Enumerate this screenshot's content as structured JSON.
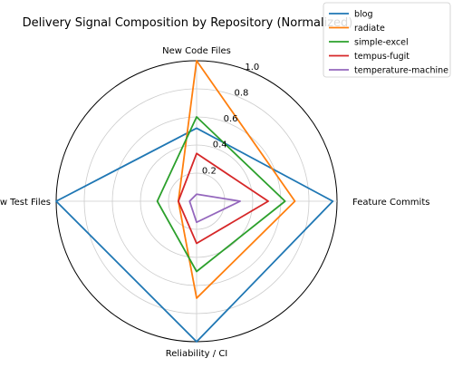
{
  "chart_data": {
    "type": "radar",
    "title": "Delivery Signal Composition by Repository (Normalized)",
    "axes": [
      "Feature Commits",
      "New Code Files",
      "New Test Files",
      "Reliability / CI"
    ],
    "rlim": [
      0,
      1.0
    ],
    "rticks": [
      0.2,
      0.4,
      0.6,
      0.8,
      1.0
    ],
    "rtick_labels": [
      "0.2",
      "0.4",
      "0.6",
      "0.8",
      "1.0"
    ],
    "grid": true,
    "legend": "top-right",
    "series": [
      {
        "name": "blog",
        "color": "#1f77b4",
        "values": [
          0.97,
          0.52,
          1.0,
          1.0
        ]
      },
      {
        "name": "radiate",
        "color": "#ff7f0e",
        "values": [
          0.7,
          1.0,
          0.13,
          0.69
        ]
      },
      {
        "name": "simple-excel",
        "color": "#2ca02c",
        "values": [
          0.63,
          0.6,
          0.28,
          0.5
        ]
      },
      {
        "name": "tempus-fugit",
        "color": "#d62728",
        "values": [
          0.51,
          0.34,
          0.13,
          0.3
        ]
      },
      {
        "name": "temperature-machine",
        "color": "#9467bd",
        "values": [
          0.31,
          0.05,
          0.05,
          0.15
        ]
      }
    ]
  }
}
